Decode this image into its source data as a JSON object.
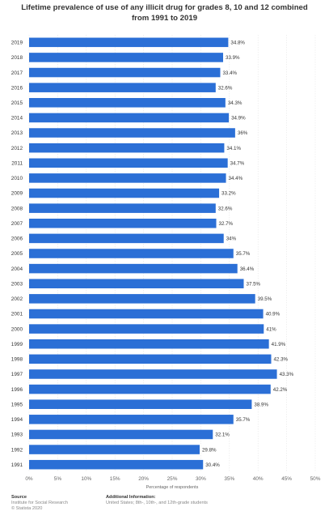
{
  "title": "Lifetime prevalence of use of any illicit drug for grades 8, 10 and 12 combined from 1991 to 2019",
  "chart_data": {
    "type": "bar",
    "orientation": "horizontal",
    "title": "Lifetime prevalence of use of any illicit drug for grades 8, 10 and 12 combined from 1991 to 2019",
    "xlabel": "Percentage of respondents",
    "ylabel": "",
    "xlim": [
      0,
      50
    ],
    "x_ticks": [
      "0%",
      "5%",
      "10%",
      "15%",
      "20%",
      "25%",
      "30%",
      "35%",
      "40%",
      "45%",
      "50%"
    ],
    "grid": true,
    "bar_color": "#2b6fd6",
    "categories": [
      "2019",
      "2018",
      "2017",
      "2016",
      "2015",
      "2014",
      "2013",
      "2012",
      "2011",
      "2010",
      "2009",
      "2008",
      "2007",
      "2006",
      "2005",
      "2004",
      "2003",
      "2002",
      "2001",
      "2000",
      "1999",
      "1998",
      "1997",
      "1996",
      "1995",
      "1994",
      "1993",
      "1992",
      "1991"
    ],
    "values": [
      34.8,
      33.9,
      33.4,
      32.6,
      34.3,
      34.9,
      36,
      34.1,
      34.7,
      34.4,
      33.2,
      32.6,
      32.7,
      34,
      35.7,
      36.4,
      37.5,
      39.5,
      40.9,
      41,
      41.9,
      42.3,
      43.3,
      42.2,
      38.9,
      35.7,
      32.1,
      29.8,
      30.4
    ],
    "value_labels": [
      "34.8%",
      "33.9%",
      "33.4%",
      "32.6%",
      "34.3%",
      "34.9%",
      "36%",
      "34.1%",
      "34.7%",
      "34.4%",
      "33.2%",
      "32.6%",
      "32.7%",
      "34%",
      "35.7%",
      "36.4%",
      "37.5%",
      "39.5%",
      "40.9%",
      "41%",
      "41.9%",
      "42.3%",
      "43.3%",
      "42.2%",
      "38.9%",
      "35.7%",
      "32.1%",
      "29.8%",
      "30.4%"
    ]
  },
  "footer": {
    "source_heading": "Source",
    "source_lines": [
      "Institute for Social Research",
      "© Statista 2020"
    ],
    "info_heading": "Additional Information:",
    "info_lines": [
      "United States; 8th-, 10th-, and 12th-grade students"
    ]
  }
}
